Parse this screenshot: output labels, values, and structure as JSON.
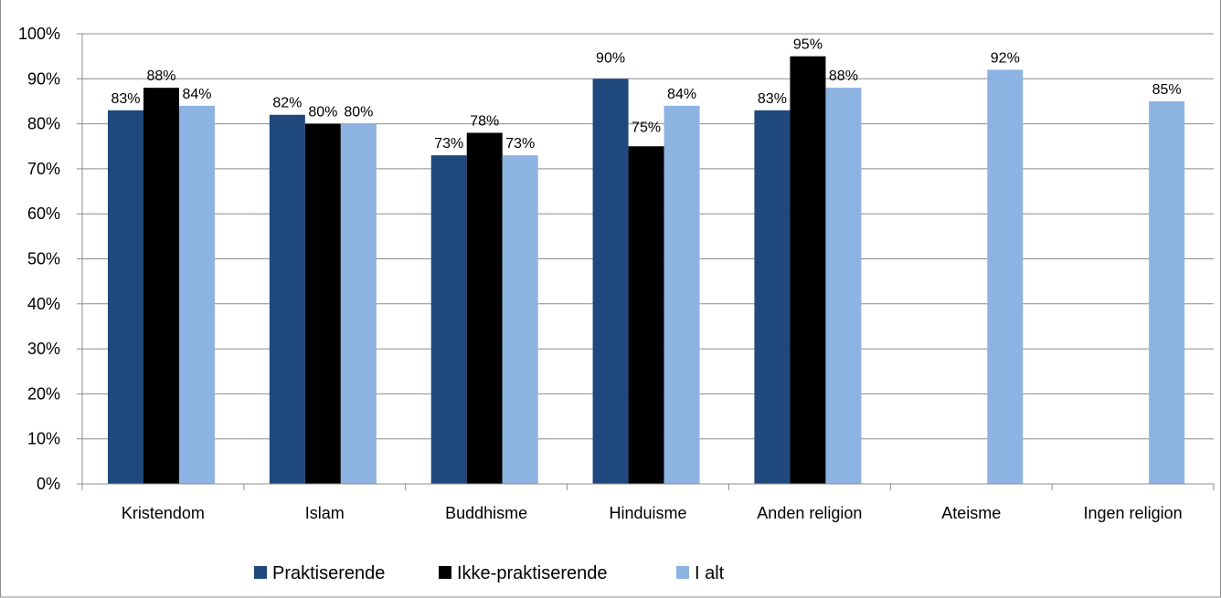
{
  "chart_data": {
    "type": "bar",
    "title": "",
    "xlabel": "",
    "ylabel": "",
    "ylim": [
      0,
      1
    ],
    "y_ticks": [
      "0%",
      "10%",
      "20%",
      "30%",
      "40%",
      "50%",
      "60%",
      "70%",
      "80%",
      "90%",
      "100%"
    ],
    "grid": true,
    "legend_position": "bottom",
    "categories": [
      "Kristendom",
      "Islam",
      "Buddhisme",
      "Hinduisme",
      "Anden religion",
      "Ateisme",
      "Ingen religion"
    ],
    "series": [
      {
        "name": "Praktiserende",
        "color": "#1F497D",
        "values": [
          0.83,
          0.82,
          0.73,
          0.9,
          0.83,
          null,
          null
        ],
        "labels": [
          "83%",
          "82%",
          "73%",
          "90%",
          "83%",
          null,
          null
        ]
      },
      {
        "name": "Ikke-praktiserende",
        "color": "#000000",
        "values": [
          0.88,
          0.8,
          0.78,
          0.75,
          0.95,
          null,
          null
        ],
        "labels": [
          "88%",
          "80%",
          "78%",
          "75%",
          "95%",
          null,
          null
        ]
      },
      {
        "name": "I alt",
        "color": "#8DB3E2",
        "values": [
          0.84,
          0.8,
          0.73,
          0.84,
          0.88,
          0.92,
          0.85
        ],
        "labels": [
          "84%",
          "80%",
          "73%",
          "84%",
          "88%",
          "92%",
          "85%"
        ]
      }
    ]
  }
}
